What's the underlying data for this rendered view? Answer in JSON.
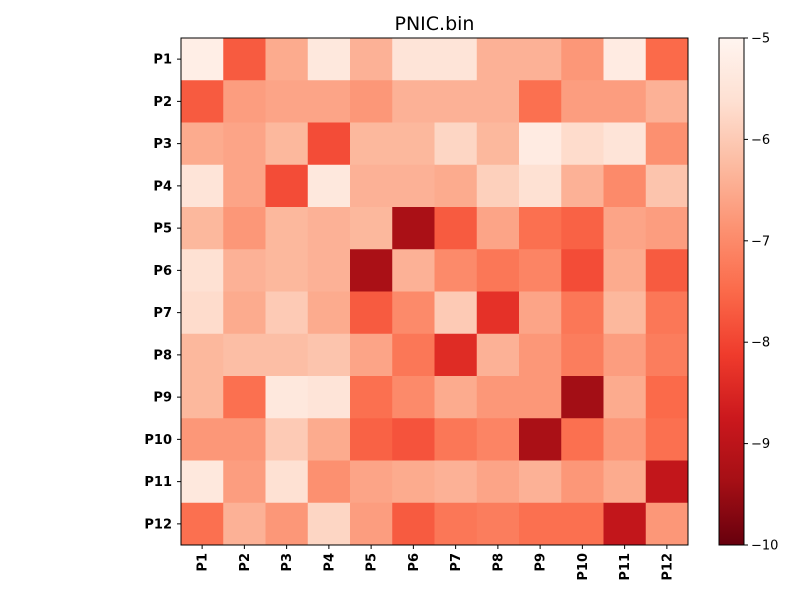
{
  "chart_data": {
    "type": "heatmap",
    "title": "PNIC.bin",
    "xlabel": "",
    "ylabel": "",
    "x_categories": [
      "P1",
      "P2",
      "P3",
      "P4",
      "P5",
      "P6",
      "P7",
      "P8",
      "P9",
      "P10",
      "P11",
      "P12"
    ],
    "y_categories": [
      "P1",
      "P2",
      "P3",
      "P4",
      "P5",
      "P6",
      "P7",
      "P8",
      "P9",
      "P10",
      "P11",
      "P12"
    ],
    "colormap": "Reds_r",
    "vmin": -10,
    "vmax": -5,
    "colorbar_ticks": [
      -5,
      -6,
      -7,
      -8,
      -9,
      -10
    ],
    "colorbar_tick_labels": [
      "−5",
      "−6",
      "−7",
      "−8",
      "−9",
      "−10"
    ],
    "colorbar_placement": "right",
    "values": [
      [
        -5.2,
        -7.7,
        -6.5,
        -5.4,
        -6.4,
        -5.5,
        -5.5,
        -6.4,
        -6.4,
        -6.8,
        -5.3,
        -7.5
      ],
      [
        -7.7,
        -6.7,
        -6.6,
        -6.6,
        -6.8,
        -6.4,
        -6.4,
        -6.4,
        -7.4,
        -6.7,
        -6.7,
        -6.4
      ],
      [
        -6.5,
        -6.6,
        -6.3,
        -7.9,
        -6.3,
        -6.3,
        -5.8,
        -6.3,
        -5.3,
        -5.7,
        -5.5,
        -6.9
      ],
      [
        -5.5,
        -6.6,
        -7.9,
        -5.4,
        -6.4,
        -6.4,
        -6.5,
        -5.9,
        -5.6,
        -6.4,
        -7.0,
        -6.1
      ],
      [
        -6.3,
        -6.8,
        -6.3,
        -6.4,
        -6.3,
        -9.3,
        -7.7,
        -6.6,
        -7.4,
        -7.6,
        -6.6,
        -6.7
      ],
      [
        -5.6,
        -6.4,
        -6.3,
        -6.4,
        -9.3,
        -6.4,
        -7.0,
        -7.3,
        -7.1,
        -7.9,
        -6.5,
        -7.7
      ],
      [
        -5.7,
        -6.5,
        -6.0,
        -6.5,
        -7.7,
        -7.0,
        -6.0,
        -8.3,
        -6.6,
        -7.3,
        -6.3,
        -7.3
      ],
      [
        -6.3,
        -6.2,
        -6.2,
        -6.1,
        -6.6,
        -7.3,
        -8.4,
        -6.4,
        -6.8,
        -7.2,
        -6.7,
        -7.2
      ],
      [
        -6.3,
        -7.4,
        -5.4,
        -5.5,
        -7.4,
        -7.0,
        -6.5,
        -6.8,
        -6.8,
        -9.4,
        -6.5,
        -7.5
      ],
      [
        -6.8,
        -6.8,
        -6.0,
        -6.5,
        -7.6,
        -7.8,
        -7.3,
        -7.1,
        -9.3,
        -7.4,
        -6.8,
        -7.4
      ],
      [
        -5.4,
        -6.7,
        -5.6,
        -6.9,
        -6.6,
        -6.5,
        -6.4,
        -6.6,
        -6.4,
        -6.8,
        -6.5,
        -8.9
      ],
      [
        -7.4,
        -6.4,
        -6.8,
        -5.8,
        -6.7,
        -7.7,
        -7.3,
        -7.2,
        -7.4,
        -7.4,
        -8.9,
        -6.8
      ]
    ]
  }
}
